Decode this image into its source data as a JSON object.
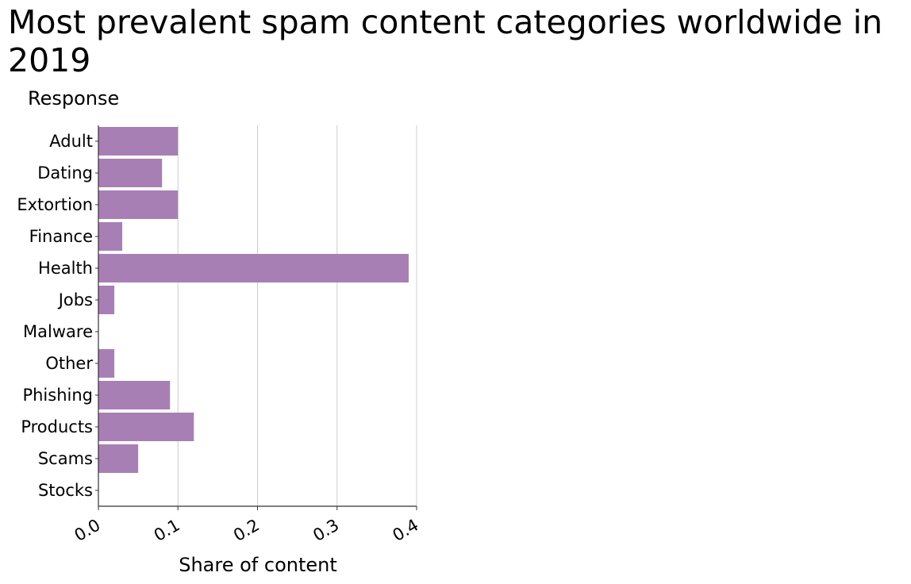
{
  "chart_data": {
    "type": "bar",
    "orientation": "horizontal",
    "title": "Most prevalent spam content categories worldwide in 2019",
    "xlabel": "Share of content",
    "ylabel": "Response",
    "categories": [
      "Adult",
      "Dating",
      "Extortion",
      "Finance",
      "Health",
      "Jobs",
      "Malware",
      "Other",
      "Phishing",
      "Products",
      "Scams",
      "Stocks"
    ],
    "values": [
      0.1,
      0.08,
      0.1,
      0.03,
      0.39,
      0.02,
      0.0,
      0.02,
      0.09,
      0.12,
      0.05,
      0.0
    ],
    "xlim": [
      0.0,
      0.4
    ],
    "xticks": [
      "0.0",
      "0.1",
      "0.2",
      "0.3",
      "0.4"
    ],
    "grid": "vertical",
    "bar_color": "#a87fb4",
    "grid_color": "#cccccc",
    "axis_color": "#333333"
  }
}
